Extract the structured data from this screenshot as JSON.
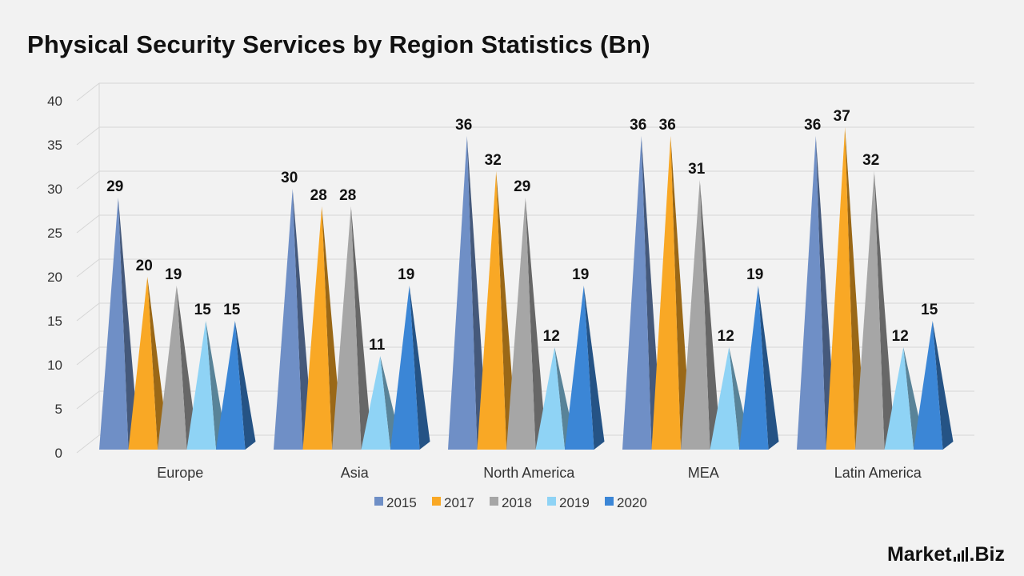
{
  "title": "Physical Security Services by Region Statistics (Bn)",
  "brand": {
    "part1": "Market",
    "part2": ".Biz"
  },
  "colors": {
    "2015": "#6f8fc6",
    "2017": "#f9a825",
    "2018": "#a6a6a6",
    "2019": "#8fd3f5",
    "2020": "#3b86d6"
  },
  "chart_data": {
    "type": "bar",
    "style": "3d-pyramid",
    "title": "Physical Security Services by Region Statistics (Bn)",
    "categories": [
      "Europe",
      "Asia",
      "North America",
      "MEA",
      "Latin America"
    ],
    "series": [
      {
        "name": "2015",
        "values": [
          29,
          30,
          36,
          36,
          36
        ]
      },
      {
        "name": "2017",
        "values": [
          20,
          28,
          32,
          36,
          37
        ]
      },
      {
        "name": "2018",
        "values": [
          19,
          28,
          29,
          31,
          32
        ]
      },
      {
        "name": "2019",
        "values": [
          15,
          11,
          12,
          12,
          12
        ]
      },
      {
        "name": "2020",
        "values": [
          15,
          19,
          19,
          19,
          15
        ]
      }
    ],
    "ylim": [
      0,
      40
    ],
    "yticks": [
      0,
      5,
      10,
      15,
      20,
      25,
      30,
      35,
      40
    ],
    "grid": true,
    "legend": "bottom",
    "data_labels": true
  }
}
